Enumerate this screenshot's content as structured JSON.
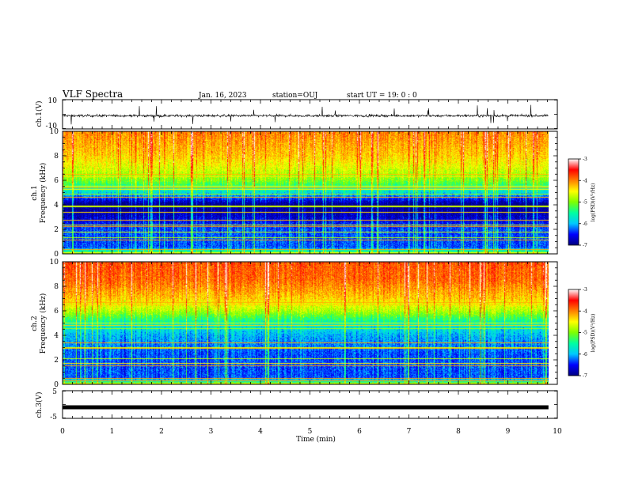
{
  "header": {
    "title": "VLF Spectra",
    "date": "Jan. 16, 2023",
    "station": "station=OUJ",
    "start": "start  UT =   19: 0  : 0"
  },
  "chart_data": [
    {
      "type": "line",
      "ylabel": "ch.1(V)",
      "ylim": [
        -10,
        10
      ],
      "yticks": [
        "10",
        "-10"
      ],
      "xlim": [
        0,
        10
      ],
      "signal": "noisy waveform around -1 V, amplitude ~1 V with spikes",
      "color": "#000000"
    },
    {
      "type": "heatmap",
      "ylabel": "ch.1",
      "ylabel2": "Frequency  (kHz)",
      "ylim": [
        0,
        10
      ],
      "yticks": [
        "0",
        "2",
        "4",
        "6",
        "8",
        "10"
      ],
      "xlim": [
        0,
        10
      ],
      "data_x_end": 9.82,
      "colorbar": {
        "label": "log(PSD)(V²/Hz)",
        "range": [
          -7,
          -3
        ],
        "ticks": [
          "-3",
          "-4",
          "-5",
          "-6",
          "-7"
        ],
        "colormap": [
          "#000080",
          "#0000ff",
          "#00c8ff",
          "#00ffa0",
          "#7dff00",
          "#ffff00",
          "#ff8000",
          "#ff0000",
          "#ffffff"
        ]
      },
      "profile": [
        {
          "f": 0.0,
          "v": -5.0
        },
        {
          "f": 0.5,
          "v": -6.3
        },
        {
          "f": 2.0,
          "v": -6.3
        },
        {
          "f": 3.0,
          "v": -6.7
        },
        {
          "f": 4.0,
          "v": -7.0
        },
        {
          "f": 5.0,
          "v": -5.8
        },
        {
          "f": 6.0,
          "v": -5.0
        },
        {
          "f": 7.0,
          "v": -4.6
        },
        {
          "f": 8.0,
          "v": -4.3
        },
        {
          "f": 10.0,
          "v": -4.0
        }
      ]
    },
    {
      "type": "heatmap",
      "ylabel": "ch.2",
      "ylabel2": "Frequency  (kHz)",
      "ylim": [
        0,
        10
      ],
      "yticks": [
        "0",
        "2",
        "4",
        "6",
        "8",
        "10"
      ],
      "xlim": [
        0,
        10
      ],
      "data_x_end": 9.82,
      "colorbar": {
        "label": "log(PSD)(V²/Hz)",
        "range": [
          -7,
          -3
        ],
        "ticks": [
          "-3",
          "-4",
          "-5",
          "-6",
          "-7"
        ],
        "colormap": [
          "#000080",
          "#0000ff",
          "#00c8ff",
          "#00ffa0",
          "#7dff00",
          "#ffff00",
          "#ff8000",
          "#ff0000",
          "#ffffff"
        ]
      },
      "profile": [
        {
          "f": 0.0,
          "v": -5.0
        },
        {
          "f": 0.5,
          "v": -6.3
        },
        {
          "f": 2.5,
          "v": -6.3
        },
        {
          "f": 4.0,
          "v": -6.0
        },
        {
          "f": 5.0,
          "v": -5.6
        },
        {
          "f": 6.0,
          "v": -4.8
        },
        {
          "f": 7.0,
          "v": -4.3
        },
        {
          "f": 8.5,
          "v": -3.9
        },
        {
          "f": 10.0,
          "v": -3.8
        }
      ]
    },
    {
      "type": "line",
      "ylabel": "ch.3(V)",
      "ylim": [
        -5,
        5
      ],
      "yticks": [
        "5",
        "-5"
      ],
      "xlim": [
        0,
        10
      ],
      "signal": "flat thick trace at about -1 V",
      "color": "#000000"
    }
  ],
  "xaxis": {
    "label": "Time  (min)",
    "ticks": [
      "0",
      "1",
      "2",
      "3",
      "4",
      "5",
      "6",
      "7",
      "8",
      "9",
      "10"
    ]
  }
}
